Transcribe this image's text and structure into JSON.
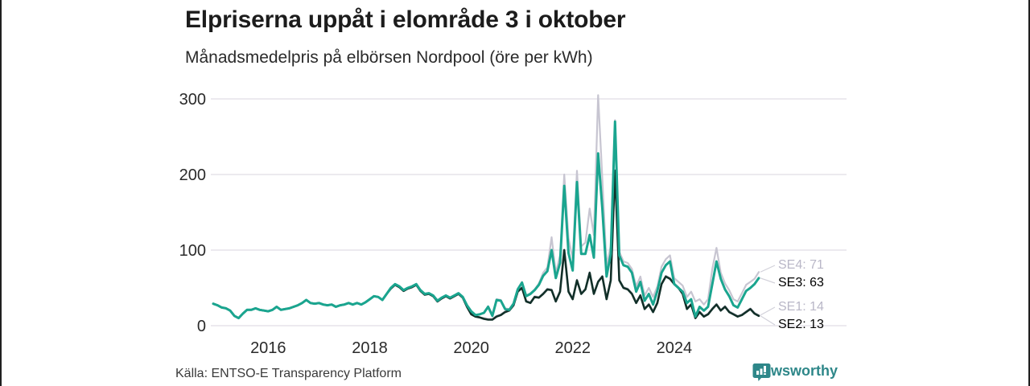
{
  "header": {
    "title": "Elpriserna uppåt i elområde 3 i oktober",
    "subtitle": "Månadsmedelpris på elbörsen Nordpool (öre per kWh)"
  },
  "footer": {
    "source": "Källa: ENTSO-E Transparency Platform",
    "brand": "Newsworthy"
  },
  "colors": {
    "se3_teal": "#1aa58f",
    "se2_dark": "#112f28",
    "se4_gray": "#c7c5d1",
    "se1_gray": "#c7c5d1",
    "grid": "#e5e4ea",
    "axis_text": "#2a2a2a",
    "muted_label": "#b9b7c7",
    "dark_label": "#000000",
    "connector": "#d2d1da",
    "brand_teal": "#2e8789"
  },
  "end_labels": [
    {
      "series": "SE4",
      "label": "SE4: 71",
      "tone": "muted",
      "value": 71
    },
    {
      "series": "SE3",
      "label": "SE3: 63",
      "tone": "dark",
      "value": 63
    },
    {
      "series": "SE1",
      "label": "SE1: 14",
      "tone": "muted",
      "value": 14
    },
    {
      "series": "SE2",
      "label": "SE2: 13",
      "tone": "dark",
      "value": 13
    }
  ],
  "chart_data": {
    "type": "line",
    "title": "Elpriserna uppåt i elområde 3 i oktober",
    "subtitle": "Månadsmedelpris på elbörsen Nordpool (öre per kWh)",
    "unit": "öre per kWh",
    "x_start": "2015-01",
    "x_end": "2025-10",
    "x_ticks": [
      "2016",
      "2018",
      "2020",
      "2022",
      "2024"
    ],
    "y_ticks": [
      0,
      100,
      200,
      300
    ],
    "ylim": [
      0,
      320
    ],
    "grid": "horizontal",
    "legend_position": "right-end-labels",
    "series": [
      {
        "name": "SE4",
        "color": "#c7c5d1",
        "width": 2.2,
        "values": [
          29,
          27,
          24,
          23,
          20,
          13,
          10,
          16,
          21,
          21,
          23,
          21,
          20,
          19,
          21,
          25,
          21,
          22,
          23,
          25,
          27,
          30,
          34,
          30,
          29,
          30,
          28,
          27,
          28,
          25,
          27,
          28,
          30,
          28,
          30,
          28,
          31,
          35,
          39,
          38,
          34,
          42,
          50,
          55,
          52,
          47,
          50,
          52,
          55,
          47,
          42,
          43,
          40,
          33,
          37,
          40,
          37,
          40,
          43,
          38,
          27,
          19,
          14,
          15,
          17,
          26,
          15,
          35,
          34,
          23,
          22,
          30,
          49,
          58,
          40,
          43,
          48,
          56,
          70,
          77,
          117,
          70,
          93,
          200,
          116,
          88,
          205,
          105,
          110,
          155,
          120,
          305,
          195,
          80,
          105,
          272,
          98,
          85,
          83,
          75,
          52,
          65,
          40,
          50,
          38,
          52,
          78,
          88,
          93,
          63,
          58,
          53,
          38,
          45,
          32,
          35,
          28,
          35,
          75,
          103,
          70,
          56,
          47,
          35,
          32,
          43,
          54,
          58,
          62,
          71
        ]
      },
      {
        "name": "SE1",
        "color": "#c7c5d1",
        "width": 2.2,
        "values": [
          29,
          27,
          24,
          23,
          20,
          13,
          10,
          16,
          21,
          21,
          23,
          21,
          20,
          19,
          21,
          25,
          21,
          22,
          23,
          25,
          27,
          30,
          34,
          30,
          29,
          30,
          28,
          27,
          28,
          25,
          27,
          28,
          30,
          28,
          30,
          28,
          31,
          35,
          39,
          38,
          34,
          42,
          49,
          54,
          51,
          46,
          49,
          51,
          54,
          46,
          41,
          42,
          39,
          32,
          36,
          39,
          36,
          39,
          42,
          37,
          25,
          15,
          12,
          11,
          10,
          9,
          9,
          13,
          15,
          19,
          21,
          28,
          46,
          51,
          33,
          31,
          39,
          38,
          43,
          49,
          48,
          33,
          46,
          101,
          46,
          36,
          61,
          43,
          49,
          71,
          43,
          59,
          66,
          36,
          61,
          206,
          61,
          51,
          49,
          43,
          31,
          41,
          23,
          29,
          19,
          31,
          56,
          66,
          63,
          56,
          51,
          43,
          23,
          29,
          11,
          19,
          13,
          16,
          23,
          29,
          21,
          26,
          19,
          16,
          13,
          15,
          19,
          23,
          17,
          14
        ]
      },
      {
        "name": "SE2",
        "color": "#112f28",
        "width": 2.6,
        "values": [
          29,
          27,
          24,
          23,
          20,
          13,
          10,
          16,
          21,
          21,
          23,
          21,
          20,
          19,
          21,
          25,
          21,
          22,
          23,
          25,
          27,
          30,
          34,
          30,
          29,
          30,
          28,
          27,
          28,
          25,
          27,
          28,
          30,
          28,
          30,
          28,
          31,
          35,
          39,
          38,
          34,
          42,
          49,
          54,
          51,
          46,
          49,
          51,
          54,
          46,
          41,
          42,
          39,
          32,
          36,
          39,
          36,
          39,
          42,
          37,
          25,
          15,
          12,
          11,
          9,
          8,
          8,
          12,
          14,
          18,
          20,
          27,
          45,
          50,
          32,
          30,
          38,
          37,
          42,
          48,
          47,
          32,
          45,
          100,
          45,
          35,
          60,
          42,
          48,
          70,
          42,
          58,
          65,
          35,
          60,
          205,
          60,
          50,
          48,
          42,
          30,
          40,
          22,
          28,
          18,
          30,
          55,
          65,
          62,
          55,
          50,
          42,
          22,
          28,
          10,
          18,
          12,
          15,
          22,
          28,
          20,
          25,
          18,
          15,
          12,
          14,
          18,
          22,
          16,
          13
        ]
      },
      {
        "name": "SE3",
        "color": "#1aa58f",
        "width": 3,
        "values": [
          29,
          27,
          24,
          23,
          20,
          13,
          10,
          16,
          21,
          21,
          23,
          21,
          20,
          19,
          21,
          25,
          21,
          22,
          23,
          25,
          27,
          30,
          34,
          30,
          29,
          30,
          28,
          27,
          28,
          25,
          27,
          28,
          30,
          28,
          30,
          28,
          31,
          35,
          39,
          38,
          34,
          42,
          50,
          55,
          52,
          47,
          50,
          52,
          55,
          47,
          42,
          43,
          40,
          33,
          37,
          40,
          37,
          40,
          43,
          38,
          27,
          19,
          14,
          15,
          17,
          25,
          13,
          34,
          33,
          22,
          21,
          29,
          48,
          57,
          39,
          42,
          47,
          54,
          66,
          72,
          100,
          63,
          83,
          185,
          96,
          73,
          190,
          95,
          95,
          120,
          90,
          228,
          155,
          65,
          95,
          270,
          93,
          80,
          78,
          70,
          45,
          58,
          33,
          42,
          28,
          46,
          70,
          80,
          85,
          55,
          50,
          45,
          30,
          35,
          12,
          25,
          20,
          25,
          55,
          85,
          62,
          48,
          39,
          27,
          24,
          35,
          46,
          50,
          55,
          63
        ]
      }
    ],
    "end_values": {
      "SE4": 71,
      "SE3": 63,
      "SE1": 14,
      "SE2": 13
    }
  }
}
